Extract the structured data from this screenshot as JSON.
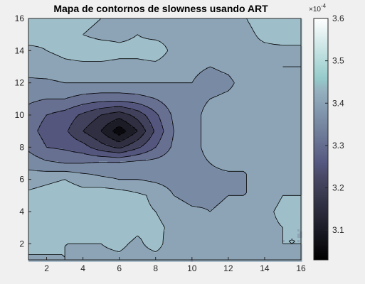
{
  "chart_data": {
    "type": "heatmap",
    "subtype": "filled-contour",
    "title": "Mapa de contornos de slowness usando ART",
    "xlabel": "",
    "ylabel": "",
    "xlim": [
      1,
      16
    ],
    "ylim": [
      1,
      16
    ],
    "x_ticks": [
      2,
      4,
      6,
      8,
      10,
      12,
      14,
      16
    ],
    "x_tick_labels": [
      "2",
      "4",
      "6",
      "8",
      "10",
      "12",
      "14",
      "16"
    ],
    "y_ticks": [
      2,
      4,
      6,
      8,
      10,
      12,
      14,
      16
    ],
    "y_tick_labels": [
      "2",
      "4",
      "6",
      "8",
      "10",
      "12",
      "14",
      "16"
    ],
    "colormap": "bone",
    "colorbar": {
      "clim": [
        3.03,
        3.6
      ],
      "ticks": [
        3.1,
        3.2,
        3.3,
        3.4,
        3.5,
        3.6
      ],
      "tick_labels": [
        "3.1",
        "3.2",
        "3.3",
        "3.4",
        "3.5",
        "3.6"
      ],
      "exponent_label": "×10",
      "exponent_power": "-4",
      "position": "right"
    },
    "grid": false,
    "contour_levels": [
      3.08,
      3.13,
      3.18,
      3.23,
      3.28,
      3.33,
      3.38,
      3.43,
      3.48
    ],
    "x": [
      1,
      2,
      3,
      4,
      5,
      6,
      7,
      8,
      9,
      10,
      11,
      12,
      13,
      14,
      15,
      16
    ],
    "y": [
      1,
      2,
      3,
      4,
      5,
      6,
      7,
      8,
      9,
      10,
      11,
      12,
      13,
      14,
      15,
      16
    ],
    "z": [
      [
        3.42,
        3.42,
        3.43,
        3.42,
        3.42,
        3.42,
        3.41,
        3.41,
        3.41,
        3.38,
        3.4,
        3.39,
        3.4,
        3.41,
        3.41,
        3.41
      ],
      [
        3.45,
        3.45,
        3.43,
        3.43,
        3.43,
        3.44,
        3.42,
        3.45,
        3.4,
        3.41,
        3.42,
        3.4,
        3.41,
        3.42,
        3.43,
        3.43
      ],
      [
        3.43,
        3.44,
        3.44,
        3.44,
        3.45,
        3.46,
        3.44,
        3.44,
        3.42,
        3.43,
        3.42,
        3.41,
        3.42,
        3.42,
        3.43,
        3.43
      ],
      [
        3.44,
        3.43,
        3.44,
        3.46,
        3.47,
        3.46,
        3.44,
        3.43,
        3.41,
        3.39,
        3.38,
        3.39,
        3.4,
        3.42,
        3.44,
        3.44
      ],
      [
        3.44,
        3.45,
        3.46,
        3.45,
        3.47,
        3.46,
        3.44,
        3.42,
        3.38,
        3.36,
        3.37,
        3.38,
        3.38,
        3.41,
        3.43,
        3.43
      ],
      [
        3.41,
        3.42,
        3.43,
        3.41,
        3.39,
        3.38,
        3.38,
        3.37,
        3.36,
        3.37,
        3.37,
        3.37,
        3.38,
        3.4,
        3.42,
        3.42
      ],
      [
        3.36,
        3.34,
        3.33,
        3.33,
        3.34,
        3.34,
        3.35,
        3.35,
        3.36,
        3.37,
        3.38,
        3.39,
        3.38,
        3.4,
        3.41,
        3.42
      ],
      [
        3.32,
        3.28,
        3.27,
        3.25,
        3.2,
        3.17,
        3.22,
        3.28,
        3.34,
        3.37,
        3.39,
        3.4,
        3.4,
        3.41,
        3.42,
        3.42
      ],
      [
        3.3,
        3.26,
        3.24,
        3.18,
        3.13,
        3.05,
        3.13,
        3.24,
        3.33,
        3.37,
        3.39,
        3.4,
        3.41,
        3.41,
        3.4,
        3.41
      ],
      [
        3.31,
        3.28,
        3.26,
        3.22,
        3.18,
        3.15,
        3.2,
        3.27,
        3.34,
        3.37,
        3.39,
        3.4,
        3.41,
        3.41,
        3.42,
        3.42
      ],
      [
        3.34,
        3.33,
        3.33,
        3.31,
        3.3,
        3.3,
        3.31,
        3.33,
        3.36,
        3.37,
        3.38,
        3.39,
        3.4,
        3.41,
        3.42,
        3.42
      ],
      [
        3.37,
        3.37,
        3.38,
        3.38,
        3.38,
        3.38,
        3.38,
        3.38,
        3.38,
        3.38,
        3.36,
        3.37,
        3.4,
        3.41,
        3.42,
        3.42
      ],
      [
        3.4,
        3.41,
        3.42,
        3.42,
        3.42,
        3.42,
        3.42,
        3.42,
        3.41,
        3.39,
        3.38,
        3.39,
        3.41,
        3.42,
        3.43,
        3.43
      ],
      [
        3.42,
        3.43,
        3.44,
        3.45,
        3.45,
        3.44,
        3.44,
        3.45,
        3.42,
        3.41,
        3.4,
        3.41,
        3.42,
        3.42,
        3.42,
        3.42
      ],
      [
        3.45,
        3.44,
        3.44,
        3.43,
        3.42,
        3.42,
        3.43,
        3.42,
        3.42,
        3.42,
        3.41,
        3.41,
        3.42,
        3.44,
        3.45,
        3.45
      ],
      [
        3.46,
        3.46,
        3.45,
        3.44,
        3.43,
        3.43,
        3.42,
        3.42,
        3.42,
        3.41,
        3.42,
        3.42,
        3.43,
        3.45,
        3.46,
        3.46
      ]
    ]
  }
}
